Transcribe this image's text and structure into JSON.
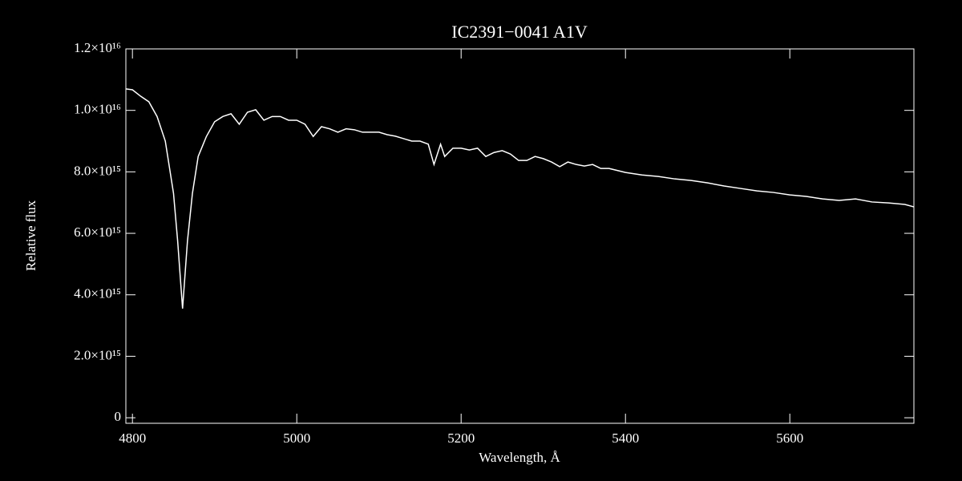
{
  "chart_data": {
    "type": "line",
    "title": "IC2391−0041   A1V",
    "xlabel": "Wavelength, Å",
    "ylabel": "Relative flux",
    "series": [
      {
        "name": "IC2391-0041",
        "color": "#ffffff",
        "x": [
          4792,
          4800,
          4810,
          4820,
          4830,
          4840,
          4850,
          4855,
          4861,
          4867,
          4873,
          4880,
          4890,
          4900,
          4910,
          4920,
          4930,
          4940,
          4950,
          4960,
          4970,
          4980,
          4990,
          5000,
          5010,
          5020,
          5030,
          5040,
          5050,
          5060,
          5070,
          5080,
          5090,
          5100,
          5110,
          5120,
          5130,
          5140,
          5150,
          5160,
          5167,
          5175,
          5180,
          5190,
          5200,
          5210,
          5220,
          5230,
          5240,
          5250,
          5260,
          5270,
          5280,
          5290,
          5300,
          5310,
          5320,
          5330,
          5340,
          5350,
          5360,
          5370,
          5380,
          5400,
          5420,
          5440,
          5460,
          5480,
          5500,
          5520,
          5540,
          5560,
          5580,
          5600,
          5620,
          5640,
          5660,
          5680,
          5700,
          5720,
          5740,
          5751
        ],
        "values": [
          1.07e+16,
          1.067e+16,
          1.046e+16,
          1.028e+16,
          9800000000000000.0,
          9000000000000000.0,
          7300000000000000.0,
          5760000000000000.0,
          3550000000000000.0,
          5760000000000000.0,
          7300000000000000.0,
          8500000000000000.0,
          9150000000000000.0,
          9630000000000000.0,
          9800000000000000.0,
          9890000000000000.0,
          9550000000000000.0,
          9940000000000000.0,
          1.002e+16,
          9680000000000000.0,
          9800000000000000.0,
          9800000000000000.0,
          9680000000000000.0,
          9680000000000000.0,
          9550000000000000.0,
          9150000000000000.0,
          9470000000000000.0,
          9400000000000000.0,
          9290000000000000.0,
          9400000000000000.0,
          9370000000000000.0,
          9290000000000000.0,
          9290000000000000.0,
          9290000000000000.0,
          9210000000000000.0,
          9160000000000000.0,
          9080000000000000.0,
          9000000000000000.0,
          9000000000000000.0,
          8900000000000000.0,
          8240000000000000.0,
          8900000000000000.0,
          8500000000000000.0,
          8770000000000000.0,
          8770000000000000.0,
          8710000000000000.0,
          8770000000000000.0,
          8500000000000000.0,
          8630000000000000.0,
          8690000000000000.0,
          8580000000000000.0,
          8370000000000000.0,
          8370000000000000.0,
          8500000000000000.0,
          8430000000000000.0,
          8320000000000000.0,
          8170000000000000.0,
          8320000000000000.0,
          8240000000000000.0,
          8190000000000000.0,
          8240000000000000.0,
          8110000000000000.0,
          8110000000000000.0,
          7980000000000000.0,
          7900000000000000.0,
          7850000000000000.0,
          7770000000000000.0,
          7720000000000000.0,
          7640000000000000.0,
          7540000000000000.0,
          7460000000000000.0,
          7380000000000000.0,
          7330000000000000.0,
          7250000000000000.0,
          7200000000000000.0,
          7120000000000000.0,
          7070000000000000.0,
          7120000000000000.0,
          7020000000000000.0,
          6990000000000000.0,
          6940000000000000.0,
          6860000000000000.0
        ]
      }
    ],
    "xlim": [
      4792,
      5751
    ],
    "xticks": [
      4800,
      5000,
      5200,
      5400,
      5600
    ],
    "ylim": [
      -180000000000000.0,
      1.2e+16
    ],
    "yticks": [
      0,
      {
        "value": 2000000000000000.0,
        "label": "2.0×10¹⁵"
      },
      {
        "value": 4000000000000000.0,
        "label": "4.0×10¹⁵"
      },
      {
        "value": 6000000000000000.0,
        "label": "6.0×10¹⁵"
      },
      {
        "value": 8000000000000000.0,
        "label": "8.0×10¹⁵"
      },
      {
        "value": 1e+16,
        "label": "1.0×10¹⁶"
      },
      {
        "value": 1.2e+16,
        "label": "1.2×10¹⁶"
      }
    ]
  }
}
